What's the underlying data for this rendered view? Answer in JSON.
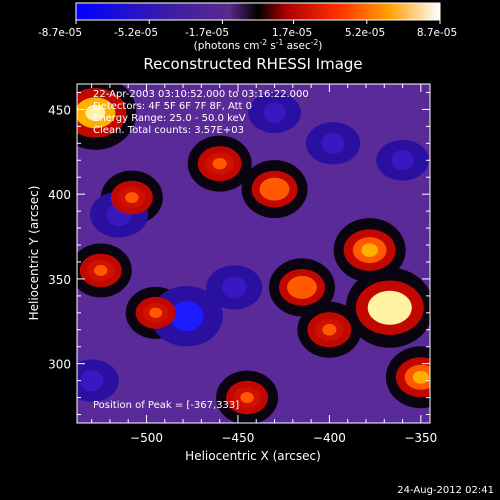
{
  "colorbar": {
    "ticks": [
      "-8.7e-05",
      "-5.2e-05",
      "-1.7e-05",
      "1.7e-05",
      "5.2e-05",
      "8.7e-05"
    ],
    "range": [
      -8.7e-05,
      8.7e-05
    ],
    "unit_main": "(photons cm",
    "unit_exp1": "-2",
    "unit_mid": " s",
    "unit_exp2": "-1",
    "unit_tail": " asec",
    "unit_exp3": "-2",
    "unit_close": ")"
  },
  "chart_data": {
    "type": "heatmap",
    "title": "Reconstructed RHESSI Image",
    "xlabel": "Heliocentric X (arcsec)",
    "ylabel": "Heliocentric Y (arcsec)",
    "xlim": [
      -538,
      -345
    ],
    "ylim": [
      265,
      465
    ],
    "xticks": [
      -500,
      -450,
      -400,
      -350
    ],
    "yticks": [
      300,
      350,
      400,
      450
    ],
    "annotations": [
      "22-Apr-2003 03:10:52.000 to 03:16:22.000",
      "Detectors: 4F 5F 6F 7F 8F, Att 0",
      "Energy Range: 25.0 - 50.0 keV",
      "Clean. Total counts: 3.57E+03"
    ],
    "peak_label": "Position of Peak = [-367,333]",
    "peak": [
      -367,
      333
    ],
    "bright_sources": [
      {
        "x": -367,
        "y": 333,
        "level": 1.0
      },
      {
        "x": -528,
        "y": 448,
        "level": 0.85
      },
      {
        "x": -378,
        "y": 367,
        "level": 0.6
      },
      {
        "x": -350,
        "y": 292,
        "level": 0.55
      },
      {
        "x": -430,
        "y": 403,
        "level": 0.45
      },
      {
        "x": -460,
        "y": 418,
        "level": 0.4
      },
      {
        "x": -508,
        "y": 398,
        "level": 0.35
      },
      {
        "x": -525,
        "y": 355,
        "level": 0.35
      },
      {
        "x": -415,
        "y": 345,
        "level": 0.45
      },
      {
        "x": -400,
        "y": 320,
        "level": 0.4
      },
      {
        "x": -445,
        "y": 280,
        "level": 0.35
      },
      {
        "x": -495,
        "y": 330,
        "level": 0.3
      }
    ],
    "cool_regions": [
      {
        "x": -478,
        "y": 328,
        "level": -0.9
      },
      {
        "x": -515,
        "y": 388,
        "level": -0.5
      },
      {
        "x": -398,
        "y": 430,
        "level": -0.4
      },
      {
        "x": -452,
        "y": 345,
        "level": -0.45
      },
      {
        "x": -430,
        "y": 448,
        "level": -0.35
      },
      {
        "x": -360,
        "y": 420,
        "level": -0.35
      },
      {
        "x": -530,
        "y": 290,
        "level": -0.4
      }
    ],
    "grid": false
  },
  "footer": {
    "timestamp": "24-Aug-2012 02:41"
  }
}
